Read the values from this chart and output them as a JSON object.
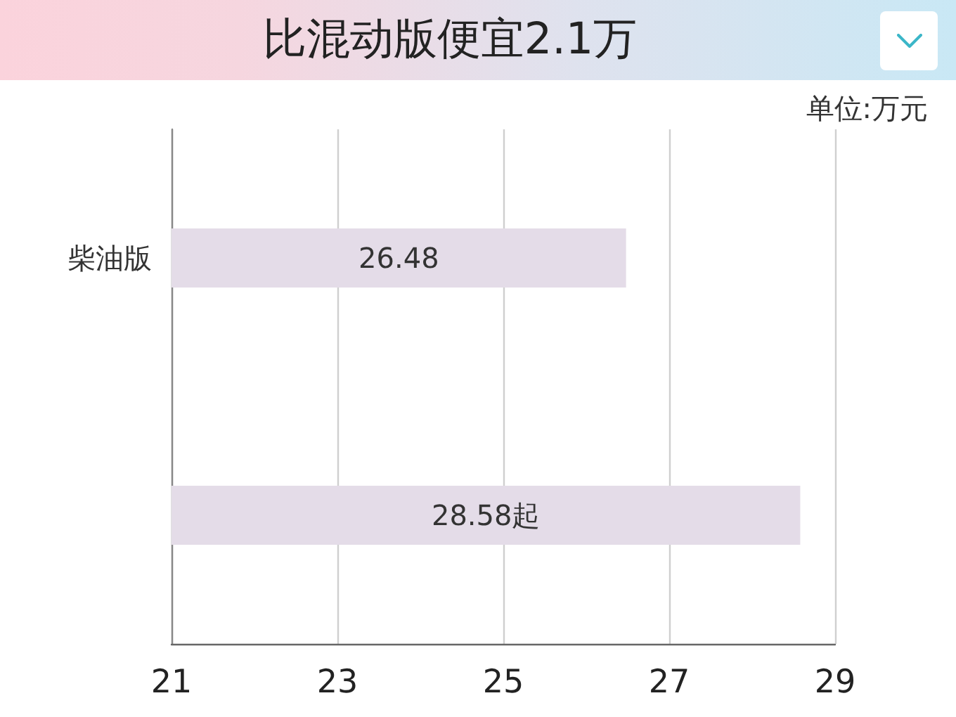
{
  "chart_data": {
    "type": "bar",
    "orientation": "horizontal",
    "title": "比混动版便宜2.1万",
    "annotations": [
      "单位:万元"
    ],
    "categories": [
      "柴油版",
      null
    ],
    "values": [
      26.48,
      28.58
    ],
    "value_labels": [
      "26.48",
      "28.58起"
    ],
    "color": "#e4dce8",
    "xlim": [
      21,
      29
    ],
    "xticks": [
      21,
      23,
      25,
      27,
      29
    ],
    "grid": "x"
  }
}
